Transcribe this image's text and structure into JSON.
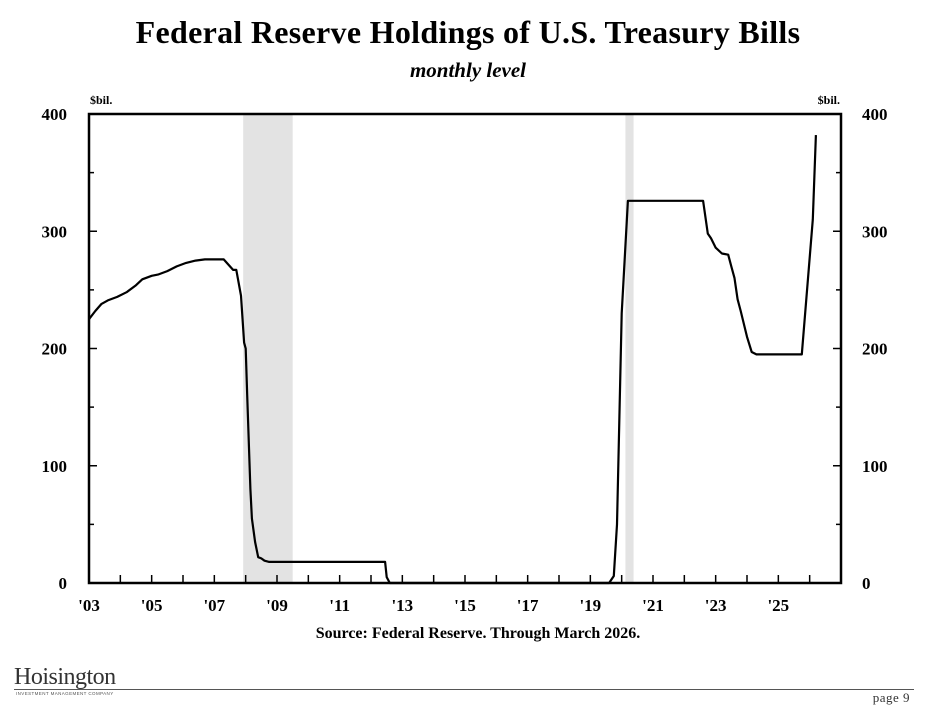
{
  "chart_data": {
    "type": "line",
    "title": "Federal Reserve Holdings of U.S. Treasury Bills",
    "subtitle": "monthly level",
    "ylabel_left": "$bil.",
    "ylabel_right": "$bil.",
    "xlim": [
      2003.0,
      2027.0
    ],
    "ylim": [
      0,
      400
    ],
    "y_ticks": [
      0,
      100,
      200,
      300,
      400
    ],
    "x_tick_labels": [
      {
        "x": 2003,
        "label": "'03"
      },
      {
        "x": 2005,
        "label": "'05"
      },
      {
        "x": 2007,
        "label": "'07"
      },
      {
        "x": 2009,
        "label": "'09"
      },
      {
        "x": 2011,
        "label": "'11"
      },
      {
        "x": 2013,
        "label": "'13"
      },
      {
        "x": 2015,
        "label": "'15"
      },
      {
        "x": 2017,
        "label": "'17"
      },
      {
        "x": 2019,
        "label": "'19"
      },
      {
        "x": 2021,
        "label": "'21"
      },
      {
        "x": 2023,
        "label": "'23"
      },
      {
        "x": 2025,
        "label": "'25"
      }
    ],
    "recessions": [
      {
        "start": 2007.92,
        "end": 2009.5
      },
      {
        "start": 2020.12,
        "end": 2020.38
      }
    ],
    "grid": false,
    "series": [
      {
        "x": [
          2003.0,
          2003.2,
          2003.4,
          2003.6,
          2003.9,
          2004.2,
          2004.5,
          2004.7,
          2005.0,
          2005.2,
          2005.5,
          2005.8,
          2006.1,
          2006.4,
          2006.7,
          2007.0,
          2007.3,
          2007.6,
          2007.7,
          2007.85,
          2007.95,
          2008.0,
          2008.05,
          2008.15,
          2008.2,
          2008.3,
          2008.4,
          2008.5,
          2008.6,
          2008.75,
          2009.0,
          2009.5,
          2010.0,
          2011.0,
          2012.0,
          2012.45,
          2012.5,
          2012.6,
          2013.0,
          2015.0,
          2017.0,
          2019.0,
          2019.6,
          2019.75,
          2019.85,
          2020.0,
          2020.2,
          2020.4,
          2021.0,
          2022.0,
          2022.6,
          2022.75,
          2022.85,
          2023.0,
          2023.2,
          2023.4,
          2023.5,
          2023.6,
          2023.7,
          2023.8,
          2024.0,
          2024.15,
          2024.3,
          2025.0,
          2025.5,
          2025.75,
          2026.1,
          2026.2
        ],
        "y": [
          225,
          232,
          238,
          241,
          244,
          248,
          254,
          259,
          262,
          263,
          266,
          270,
          273,
          275,
          276,
          276,
          276,
          267,
          267,
          245,
          205,
          200,
          160,
          80,
          55,
          35,
          22,
          21,
          19,
          18,
          18,
          18,
          18,
          18,
          18,
          18,
          5,
          0,
          0,
          0,
          0,
          0,
          0,
          6,
          50,
          230,
          326,
          326,
          326,
          326,
          326,
          298,
          294,
          286,
          281,
          280,
          270,
          260,
          242,
          232,
          210,
          197,
          195,
          195,
          195,
          195,
          310,
          382
        ]
      }
    ]
  },
  "source_text": "Source: Federal Reserve. Through March 2026.",
  "logo": {
    "name": "Hoisington",
    "tagline": "INVESTMENT MANAGEMENT COMPANY"
  },
  "page_label": "page 9"
}
